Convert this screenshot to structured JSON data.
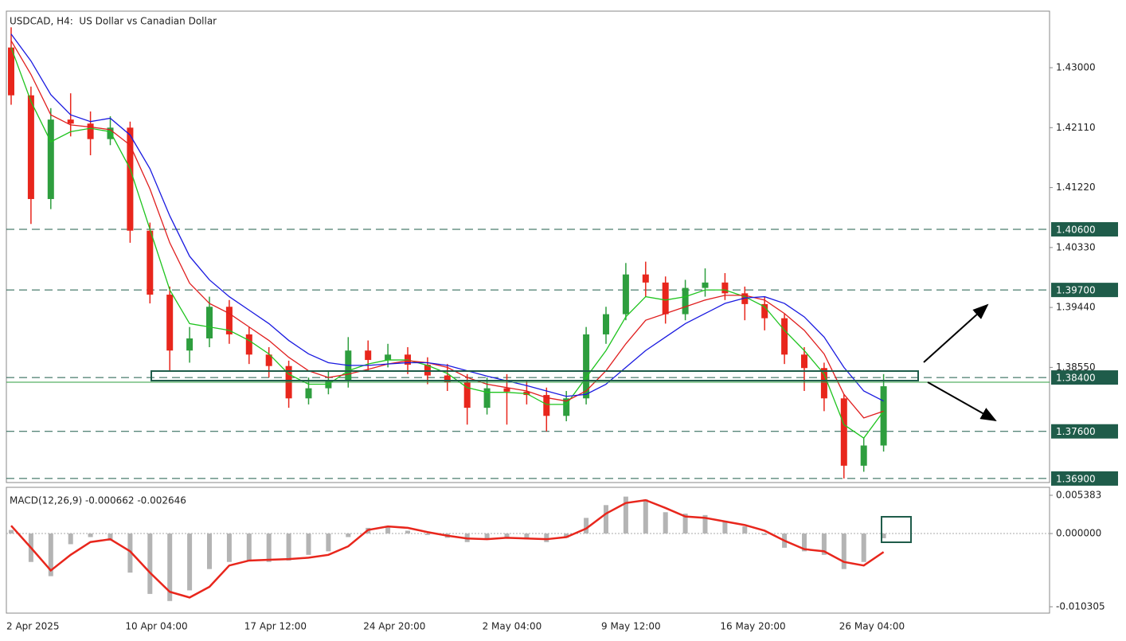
{
  "chart_data": [
    {
      "type": "candlestick",
      "title": "USDCAD, H4:  US Dollar vs Canadian Dollar",
      "categories": [
        "2 Apr 2025",
        null,
        null,
        null,
        null,
        null,
        "10 Apr 04:00",
        null,
        null,
        null,
        null,
        null,
        "17 Apr 12:00",
        null,
        null,
        null,
        null,
        null,
        "24 Apr 20:00",
        null,
        null,
        null,
        null,
        null,
        "2 May 04:00",
        null,
        null,
        null,
        null,
        null,
        "9 May 12:00",
        null,
        null,
        null,
        null,
        null,
        "16 May 20:00",
        null,
        null,
        null,
        null,
        null,
        "26 May 04:00",
        null,
        null
      ],
      "open": [
        1.433,
        1.4259,
        1.4105,
        1.4223,
        1.4217,
        1.4194,
        1.4211,
        1.4058,
        1.3963,
        1.388,
        1.3898,
        1.3945,
        1.3904,
        1.3874,
        1.3857,
        1.3809,
        1.3824,
        1.3835,
        1.388,
        1.3866,
        1.3874,
        1.3859,
        1.3843,
        1.3833,
        1.3795,
        1.3824,
        1.3819,
        1.3814,
        1.3783,
        1.3809,
        1.3904,
        1.3934,
        1.3993,
        1.3981,
        1.3934,
        1.3973,
        1.3981,
        1.3965,
        1.3949,
        1.3928,
        1.3874,
        1.3854,
        1.3809,
        1.3709,
        1.3739
      ],
      "high": [
        1.436,
        1.4272,
        1.424,
        1.4262,
        1.4235,
        1.4228,
        1.422,
        1.407,
        1.3975,
        1.3915,
        1.396,
        1.3955,
        1.3915,
        1.3885,
        1.3865,
        1.384,
        1.385,
        1.39,
        1.3895,
        1.389,
        1.3885,
        1.387,
        1.386,
        1.3845,
        1.384,
        1.3845,
        1.3835,
        1.3825,
        1.382,
        1.3915,
        1.3945,
        1.401,
        1.4012,
        1.399,
        1.3985,
        1.4002,
        1.3995,
        1.3975,
        1.396,
        1.3935,
        1.3885,
        1.3862,
        1.3815,
        1.375,
        1.3845
      ],
      "low": [
        1.4245,
        1.4068,
        1.409,
        1.4198,
        1.417,
        1.4185,
        1.404,
        1.395,
        1.385,
        1.3862,
        1.3885,
        1.389,
        1.386,
        1.384,
        1.3795,
        1.38,
        1.3815,
        1.3825,
        1.385,
        1.3855,
        1.3845,
        1.383,
        1.382,
        1.377,
        1.3785,
        1.377,
        1.38,
        1.376,
        1.3775,
        1.38,
        1.389,
        1.3925,
        1.396,
        1.392,
        1.3925,
        1.396,
        1.3955,
        1.3925,
        1.391,
        1.386,
        1.382,
        1.379,
        1.369,
        1.37,
        1.373
      ],
      "close": [
        1.4259,
        1.4105,
        1.4223,
        1.4217,
        1.4194,
        1.4211,
        1.4058,
        1.3963,
        1.388,
        1.3898,
        1.3945,
        1.3904,
        1.3874,
        1.3857,
        1.3809,
        1.3824,
        1.3835,
        1.388,
        1.3866,
        1.3874,
        1.3859,
        1.3843,
        1.3833,
        1.3795,
        1.3824,
        1.3819,
        1.3814,
        1.3783,
        1.3809,
        1.3904,
        1.3934,
        1.3993,
        1.3981,
        1.3934,
        1.3973,
        1.3981,
        1.3965,
        1.3949,
        1.3928,
        1.3874,
        1.3854,
        1.3809,
        1.3709,
        1.3739,
        1.3827
      ],
      "up_color": "#2e9e3e",
      "down_color": "#e8261c",
      "lines": [
        {
          "color": "#1fc41f",
          "values": [
            1.433,
            1.425,
            1.419,
            1.4205,
            1.421,
            1.4205,
            1.415,
            1.406,
            1.397,
            1.392,
            1.3915,
            1.391,
            1.3895,
            1.3875,
            1.3845,
            1.383,
            1.383,
            1.385,
            1.386,
            1.3866,
            1.3866,
            1.3858,
            1.3846,
            1.3825,
            1.3818,
            1.3818,
            1.3816,
            1.38,
            1.38,
            1.384,
            1.388,
            1.393,
            1.396,
            1.3955,
            1.396,
            1.397,
            1.397,
            1.396,
            1.3945,
            1.391,
            1.388,
            1.3845,
            1.377,
            1.375,
            1.379
          ]
        },
        {
          "color": "#e01e1e",
          "values": [
            1.434,
            1.429,
            1.423,
            1.4215,
            1.4212,
            1.4208,
            1.4185,
            1.412,
            1.404,
            1.398,
            1.395,
            1.3935,
            1.3915,
            1.3895,
            1.387,
            1.385,
            1.384,
            1.3845,
            1.3852,
            1.386,
            1.3865,
            1.3862,
            1.3855,
            1.384,
            1.383,
            1.3825,
            1.382,
            1.381,
            1.3805,
            1.382,
            1.385,
            1.389,
            1.3925,
            1.3935,
            1.3945,
            1.3955,
            1.3962,
            1.3962,
            1.3955,
            1.3935,
            1.391,
            1.3875,
            1.3815,
            1.378,
            1.379
          ]
        },
        {
          "color": "#1a1ae0",
          "values": [
            1.435,
            1.431,
            1.426,
            1.423,
            1.422,
            1.4225,
            1.42,
            1.415,
            1.408,
            1.402,
            1.3985,
            1.396,
            1.394,
            1.392,
            1.3895,
            1.3875,
            1.3862,
            1.3858,
            1.3858,
            1.386,
            1.3862,
            1.3862,
            1.3858,
            1.385,
            1.3842,
            1.3835,
            1.3828,
            1.382,
            1.3812,
            1.3815,
            1.383,
            1.3855,
            1.388,
            1.39,
            1.392,
            1.3935,
            1.395,
            1.3958,
            1.396,
            1.395,
            1.393,
            1.39,
            1.3855,
            1.382,
            1.3805
          ]
        }
      ],
      "ylim": [
        1.3684,
        1.4384
      ],
      "yticks": [
        {
          "value": 1.43,
          "label": "1.43000"
        },
        {
          "value": 1.4211,
          "label": "1.42110"
        },
        {
          "value": 1.4122,
          "label": "1.41220"
        },
        {
          "value": 1.4033,
          "label": "1.40330"
        },
        {
          "value": 1.3944,
          "label": "1.39440"
        },
        {
          "value": 1.3855,
          "label": "1.38550"
        }
      ],
      "level_color": "#1f5c4a",
      "levels": [
        {
          "value": 1.406,
          "label": "1.40600"
        },
        {
          "value": 1.397,
          "label": "1.39700"
        },
        {
          "value": 1.384,
          "label": "1.38400"
        },
        {
          "value": 1.376,
          "label": "1.37600"
        },
        {
          "value": 1.369,
          "label": "1.36900"
        }
      ]
    },
    {
      "type": "macd",
      "title": "MACD(12,26,9) -0.000662 -0.002646",
      "histogram": {
        "color": "#b4b4b4",
        "values": [
          0.0005,
          -0.004,
          -0.006,
          -0.0015,
          -0.0005,
          -0.001,
          -0.0055,
          -0.0085,
          -0.0095,
          -0.008,
          -0.005,
          -0.004,
          -0.0038,
          -0.004,
          -0.0038,
          -0.003,
          -0.0025,
          -0.0005,
          0.0008,
          0.001,
          0.0004,
          -0.0002,
          -0.0006,
          -0.0012,
          -0.0008,
          -0.0007,
          -0.0008,
          -0.0012,
          -0.0006,
          0.0022,
          0.004,
          0.0052,
          0.0048,
          0.003,
          0.0028,
          0.0026,
          0.0018,
          0.001,
          -0.0002,
          -0.002,
          -0.0025,
          -0.003,
          -0.005,
          -0.004,
          -0.00066
        ]
      },
      "signal": {
        "color": "#e8261c",
        "values": [
          0.0011,
          -0.002,
          -0.0052,
          -0.003,
          -0.0012,
          -0.0008,
          -0.0025,
          -0.0055,
          -0.0082,
          -0.009,
          -0.0075,
          -0.0045,
          -0.0038,
          -0.0037,
          -0.0036,
          -0.0034,
          -0.003,
          -0.0018,
          0.0005,
          0.001,
          0.0008,
          0.0002,
          -0.0003,
          -0.0007,
          -0.0008,
          -0.0006,
          -0.0007,
          -0.0008,
          -0.0005,
          0.0007,
          0.0028,
          0.0043,
          0.0047,
          0.0036,
          0.0024,
          0.0022,
          0.0017,
          0.0012,
          0.0004,
          -0.001,
          -0.0022,
          -0.0025,
          -0.004,
          -0.0045,
          -0.0026
        ]
      },
      "ylim": [
        -0.011201,
        0.006504
      ],
      "yticks": [
        0.005383,
        {
          "value": 0,
          "label": "0.000000"
        },
        -0.010305
      ]
    }
  ]
}
